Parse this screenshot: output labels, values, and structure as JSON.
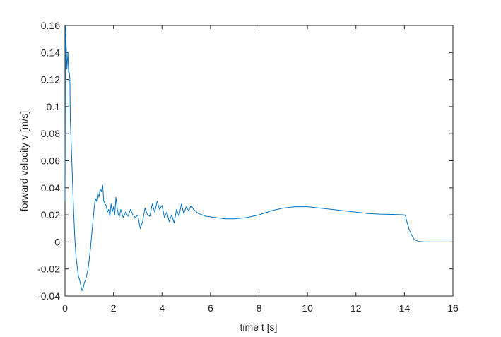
{
  "chart_data": {
    "type": "line",
    "title": "",
    "xlabel": "time t [s]",
    "ylabel": "forward velocity v [m/s]",
    "xlim": [
      0,
      16
    ],
    "ylim": [
      -0.04,
      0.16
    ],
    "xticks": [
      0,
      2,
      4,
      6,
      8,
      10,
      12,
      14,
      16
    ],
    "yticks": [
      -0.04,
      -0.02,
      0,
      0.02,
      0.04,
      0.06,
      0.08,
      0.1,
      0.12,
      0.14,
      0.16
    ],
    "xtick_labels": [
      "0",
      "2",
      "4",
      "6",
      "8",
      "10",
      "12",
      "14",
      "16"
    ],
    "ytick_labels": [
      "-0.04",
      "-0.02",
      "0",
      "0.02",
      "0.04",
      "0.06",
      "0.08",
      "0.1",
      "0.12",
      "0.14",
      "0.16"
    ],
    "grid": false,
    "line_color": "#0072BD",
    "axis_color": "#262626",
    "series": [
      {
        "x": [
          0,
          0.02,
          0.05,
          0.08,
          0.12,
          0.15,
          0.18,
          0.2,
          0.22,
          0.25,
          0.3,
          0.35,
          0.4,
          0.45,
          0.5,
          0.55,
          0.6,
          0.65,
          0.7,
          0.75,
          0.8,
          0.85,
          0.9,
          0.95,
          1.0,
          1.05,
          1.1,
          1.15,
          1.2,
          1.25,
          1.3,
          1.35,
          1.4,
          1.45,
          1.5,
          1.55,
          1.6,
          1.65,
          1.7,
          1.75,
          1.8,
          1.85,
          1.9,
          1.95,
          2.0,
          2.05,
          2.1,
          2.15,
          2.2,
          2.25,
          2.3,
          2.4,
          2.5,
          2.6,
          2.7,
          2.8,
          2.9,
          3.0,
          3.1,
          3.2,
          3.3,
          3.4,
          3.5,
          3.6,
          3.7,
          3.8,
          3.9,
          4.0,
          4.1,
          4.2,
          4.3,
          4.4,
          4.5,
          4.6,
          4.7,
          4.8,
          4.9,
          5.0,
          5.1,
          5.2,
          5.3,
          5.5,
          5.8,
          6.2,
          6.6,
          7.0,
          7.5,
          8.0,
          8.5,
          9.0,
          9.5,
          10.0,
          10.5,
          11.0,
          11.5,
          12.0,
          12.5,
          13.0,
          13.5,
          14.0,
          14.05,
          14.1,
          14.2,
          14.3,
          14.4,
          14.5,
          14.6,
          14.8,
          15.0,
          15.5,
          16.0
        ],
        "y": [
          0.03,
          0.16,
          0.145,
          0.128,
          0.14,
          0.125,
          0.125,
          0.12,
          0.09,
          0.075,
          0.05,
          0.025,
          0.005,
          -0.01,
          -0.018,
          -0.025,
          -0.028,
          -0.032,
          -0.036,
          -0.034,
          -0.03,
          -0.028,
          -0.024,
          -0.02,
          -0.013,
          -0.005,
          0.005,
          0.015,
          0.025,
          0.032,
          0.03,
          0.036,
          0.033,
          0.039,
          0.037,
          0.042,
          0.03,
          0.028,
          0.027,
          0.022,
          0.024,
          0.019,
          0.028,
          0.022,
          0.026,
          0.02,
          0.033,
          0.025,
          0.02,
          0.019,
          0.024,
          0.018,
          0.022,
          0.019,
          0.024,
          0.02,
          0.018,
          0.02,
          0.01,
          0.015,
          0.025,
          0.02,
          0.019,
          0.028,
          0.022,
          0.03,
          0.024,
          0.027,
          0.018,
          0.022,
          0.015,
          0.02,
          0.014,
          0.024,
          0.019,
          0.028,
          0.021,
          0.026,
          0.023,
          0.027,
          0.024,
          0.021,
          0.019,
          0.018,
          0.017,
          0.017,
          0.018,
          0.02,
          0.023,
          0.025,
          0.026,
          0.026,
          0.025,
          0.024,
          0.023,
          0.022,
          0.021,
          0.0205,
          0.0203,
          0.02,
          0.019,
          0.015,
          0.009,
          0.005,
          0.002,
          0.001,
          0.0003,
          0.0001,
          0.0,
          0.0,
          0.0
        ]
      }
    ]
  }
}
